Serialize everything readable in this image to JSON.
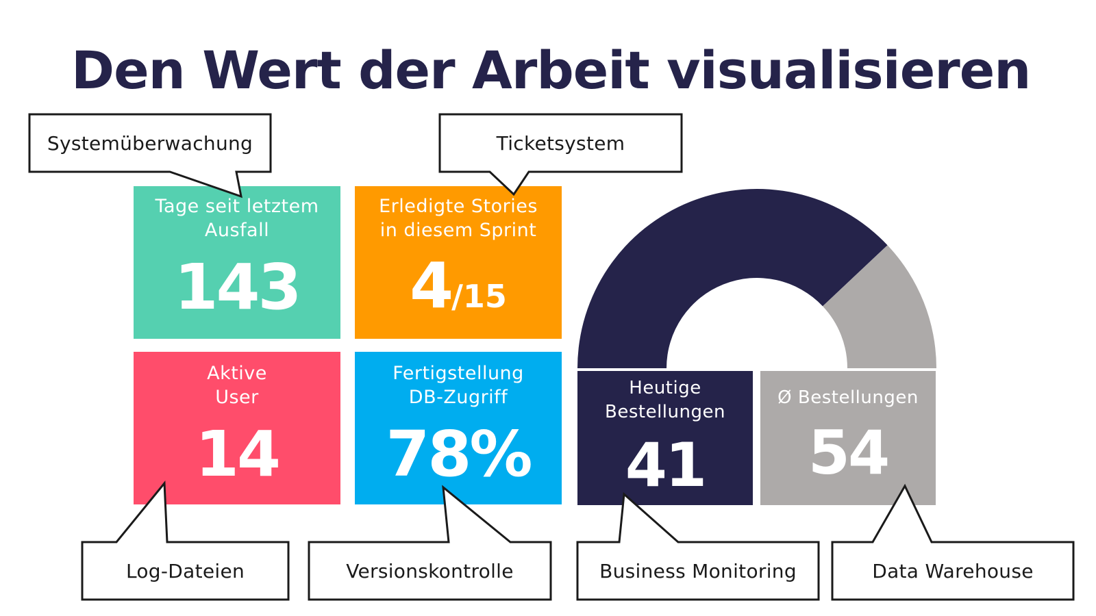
{
  "title": "Den Wert der Arbeit visualisieren",
  "colors": {
    "dark_navy": "#25234a",
    "teal": "#55d0b0",
    "orange": "#ff9a00",
    "red": "#ff4d6b",
    "blue": "#00adef",
    "gray": "#adaaa9"
  },
  "tiles": {
    "uptime": {
      "label": "Tage seit letztem\nAusfall",
      "value": "143"
    },
    "stories": {
      "label": "Erledigte Stories\nin diesem Sprint",
      "value_main": "4",
      "value_rest": "/15"
    },
    "users": {
      "label": "Aktive\nUser",
      "value": "14"
    },
    "db": {
      "label": "Fertigstellung\nDB-Zugriff",
      "value": "78%"
    },
    "orders": {
      "label": "Heutige\nBestellungen",
      "value": "41"
    },
    "avg": {
      "label": "Ø Bestellungen",
      "value": "54"
    }
  },
  "gauge": {
    "today": 41,
    "average": 54
  },
  "callouts": {
    "monitoring": "Systemüberwachung",
    "tickets": "Ticketsystem",
    "logs": "Log-Dateien",
    "vcs": "Versionskontrolle",
    "business": "Business Monitoring",
    "warehouse": "Data Warehouse"
  }
}
